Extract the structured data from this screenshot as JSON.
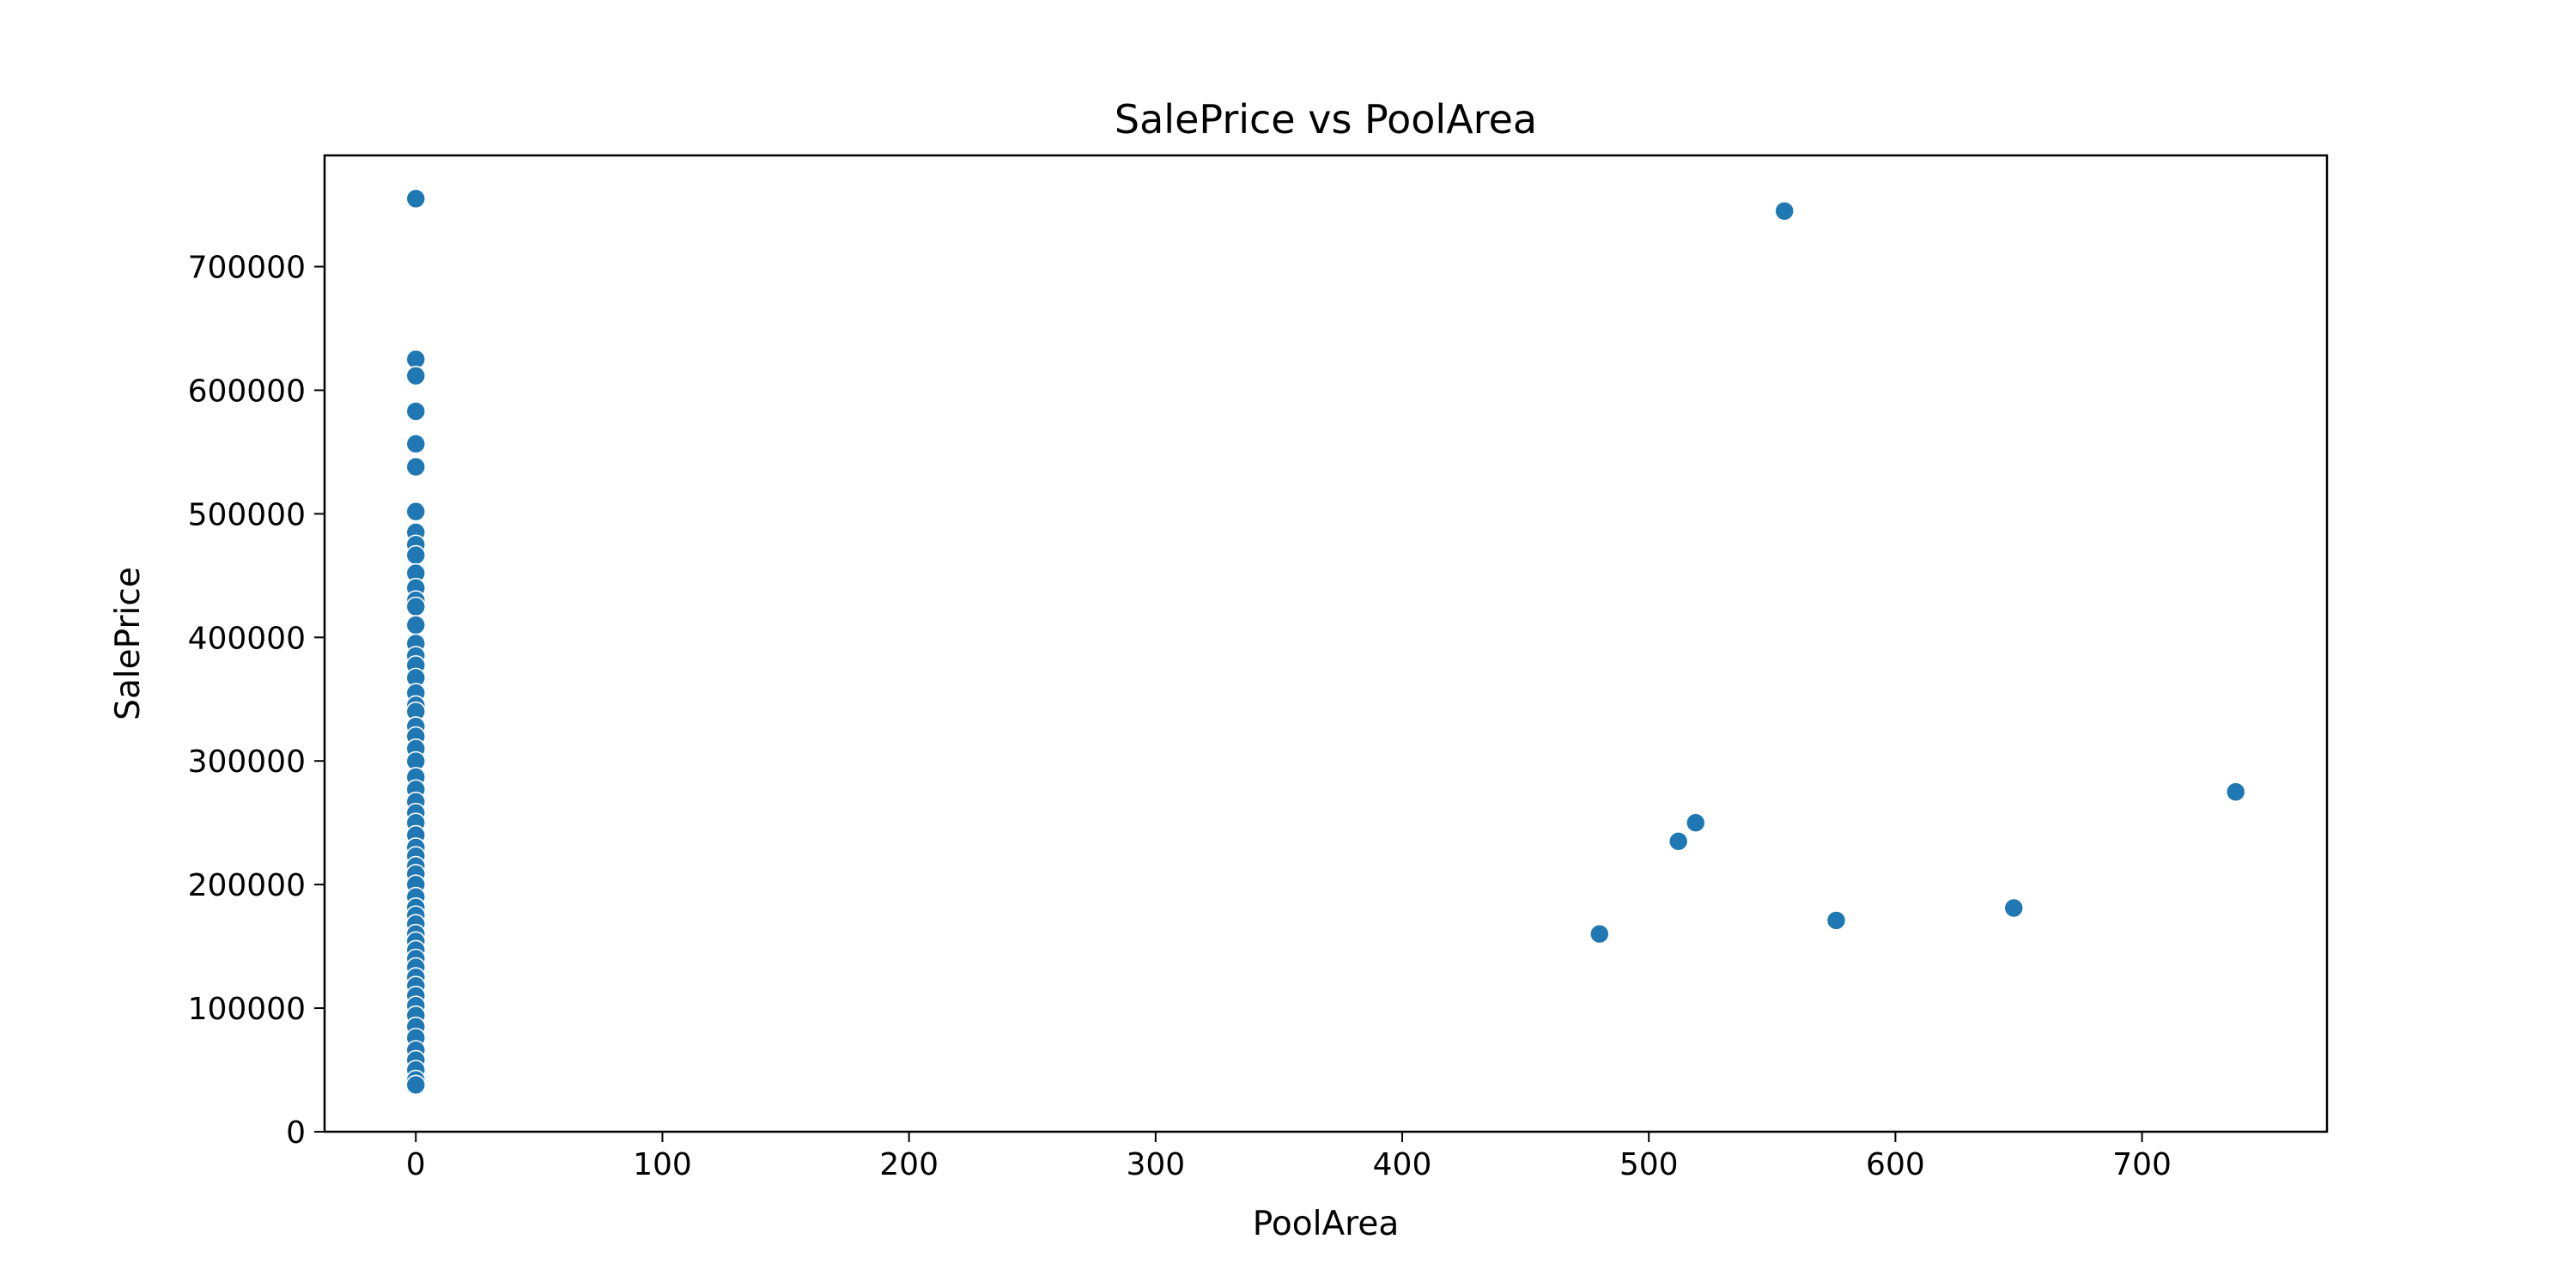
{
  "colors": {
    "marker": "#1f77b4",
    "marker_edge": "#ffffff",
    "axes": "#000000",
    "background": "#ffffff"
  },
  "chart_data": {
    "type": "scatter",
    "title": "SalePrice vs PoolArea",
    "xlabel": "PoolArea",
    "ylabel": "SalePrice",
    "xlim": [
      -37,
      775
    ],
    "ylim": [
      0,
      790000
    ],
    "xticks": [
      0,
      100,
      200,
      300,
      400,
      500,
      600,
      700
    ],
    "yticks": [
      0,
      100000,
      200000,
      300000,
      400000,
      500000,
      600000,
      700000
    ],
    "grid": false,
    "legend": "none",
    "points": [
      {
        "x": 0,
        "y": 755000
      },
      {
        "x": 0,
        "y": 625000
      },
      {
        "x": 0,
        "y": 611657
      },
      {
        "x": 0,
        "y": 582933
      },
      {
        "x": 0,
        "y": 556581
      },
      {
        "x": 0,
        "y": 538000
      },
      {
        "x": 0,
        "y": 501837
      },
      {
        "x": 0,
        "y": 485000
      },
      {
        "x": 0,
        "y": 475000
      },
      {
        "x": 0,
        "y": 466500
      },
      {
        "x": 0,
        "y": 451950
      },
      {
        "x": 0,
        "y": 440000
      },
      {
        "x": 0,
        "y": 430000
      },
      {
        "x": 0,
        "y": 424870
      },
      {
        "x": 0,
        "y": 410000
      },
      {
        "x": 0,
        "y": 395000
      },
      {
        "x": 0,
        "y": 385000
      },
      {
        "x": 0,
        "y": 377426
      },
      {
        "x": 0,
        "y": 367294
      },
      {
        "x": 0,
        "y": 355000
      },
      {
        "x": 0,
        "y": 345000
      },
      {
        "x": 0,
        "y": 340000
      },
      {
        "x": 0,
        "y": 328000
      },
      {
        "x": 0,
        "y": 319900
      },
      {
        "x": 0,
        "y": 310000
      },
      {
        "x": 0,
        "y": 299800
      },
      {
        "x": 0,
        "y": 287000
      },
      {
        "x": 0,
        "y": 277000
      },
      {
        "x": 0,
        "y": 267000
      },
      {
        "x": 0,
        "y": 258000
      },
      {
        "x": 0,
        "y": 250000
      },
      {
        "x": 0,
        "y": 240000
      },
      {
        "x": 0,
        "y": 230000
      },
      {
        "x": 0,
        "y": 223000
      },
      {
        "x": 0,
        "y": 215000
      },
      {
        "x": 0,
        "y": 208500
      },
      {
        "x": 0,
        "y": 200000
      },
      {
        "x": 0,
        "y": 190000
      },
      {
        "x": 0,
        "y": 181500
      },
      {
        "x": 0,
        "y": 175000
      },
      {
        "x": 0,
        "y": 168000
      },
      {
        "x": 0,
        "y": 160000
      },
      {
        "x": 0,
        "y": 154000
      },
      {
        "x": 0,
        "y": 147000
      },
      {
        "x": 0,
        "y": 140000
      },
      {
        "x": 0,
        "y": 133000
      },
      {
        "x": 0,
        "y": 125000
      },
      {
        "x": 0,
        "y": 118000
      },
      {
        "x": 0,
        "y": 110000
      },
      {
        "x": 0,
        "y": 102000
      },
      {
        "x": 0,
        "y": 94000
      },
      {
        "x": 0,
        "y": 85000
      },
      {
        "x": 0,
        "y": 76000
      },
      {
        "x": 0,
        "y": 66000
      },
      {
        "x": 0,
        "y": 58000
      },
      {
        "x": 0,
        "y": 50000
      },
      {
        "x": 0,
        "y": 42000
      },
      {
        "x": 0,
        "y": 37900
      },
      {
        "x": 480,
        "y": 160000
      },
      {
        "x": 512,
        "y": 235000
      },
      {
        "x": 519,
        "y": 250000
      },
      {
        "x": 555,
        "y": 745000
      },
      {
        "x": 576,
        "y": 171000
      },
      {
        "x": 648,
        "y": 181000
      },
      {
        "x": 738,
        "y": 274970
      }
    ]
  }
}
